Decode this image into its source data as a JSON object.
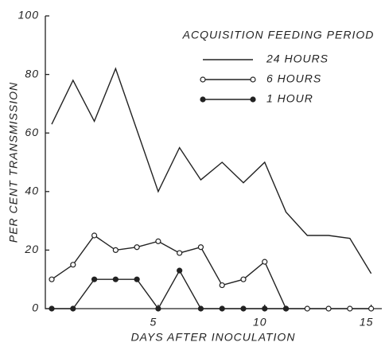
{
  "chart_data": {
    "type": "line",
    "legend_title": "ACQUISITION FEEDING PERIOD",
    "xlabel": "DAYS AFTER INOCULATION",
    "ylabel": "PER CENT TRANSMISSION",
    "x": [
      0,
      1,
      2,
      3,
      4,
      5,
      6,
      7,
      8,
      9,
      10,
      11,
      12,
      13,
      14,
      15
    ],
    "series": [
      {
        "name": "24 HOURS",
        "color": "#222222",
        "marker": "none",
        "values": [
          63,
          78,
          64,
          82,
          61,
          40,
          55,
          44,
          50,
          43,
          50,
          33,
          25,
          25,
          24,
          12
        ]
      },
      {
        "name": "6 HOURS",
        "color": "#222222",
        "marker": "open",
        "values": [
          10,
          15,
          25,
          20,
          21,
          23,
          19,
          21,
          8,
          10,
          16,
          0,
          0,
          0,
          0,
          0
        ]
      },
      {
        "name": "1 HOUR",
        "color": "#222222",
        "marker": "filled",
        "values": [
          0,
          0,
          10,
          10,
          10,
          0,
          13,
          0,
          0,
          0,
          0,
          0,
          null,
          null,
          null,
          null
        ]
      }
    ],
    "xlim": [
      -0.3,
      15.5
    ],
    "xticks": [
      5,
      10,
      15
    ],
    "ylim": [
      0,
      100
    ],
    "yticks": [
      0,
      20,
      40,
      60,
      80,
      100
    ],
    "legend": "upper right"
  }
}
